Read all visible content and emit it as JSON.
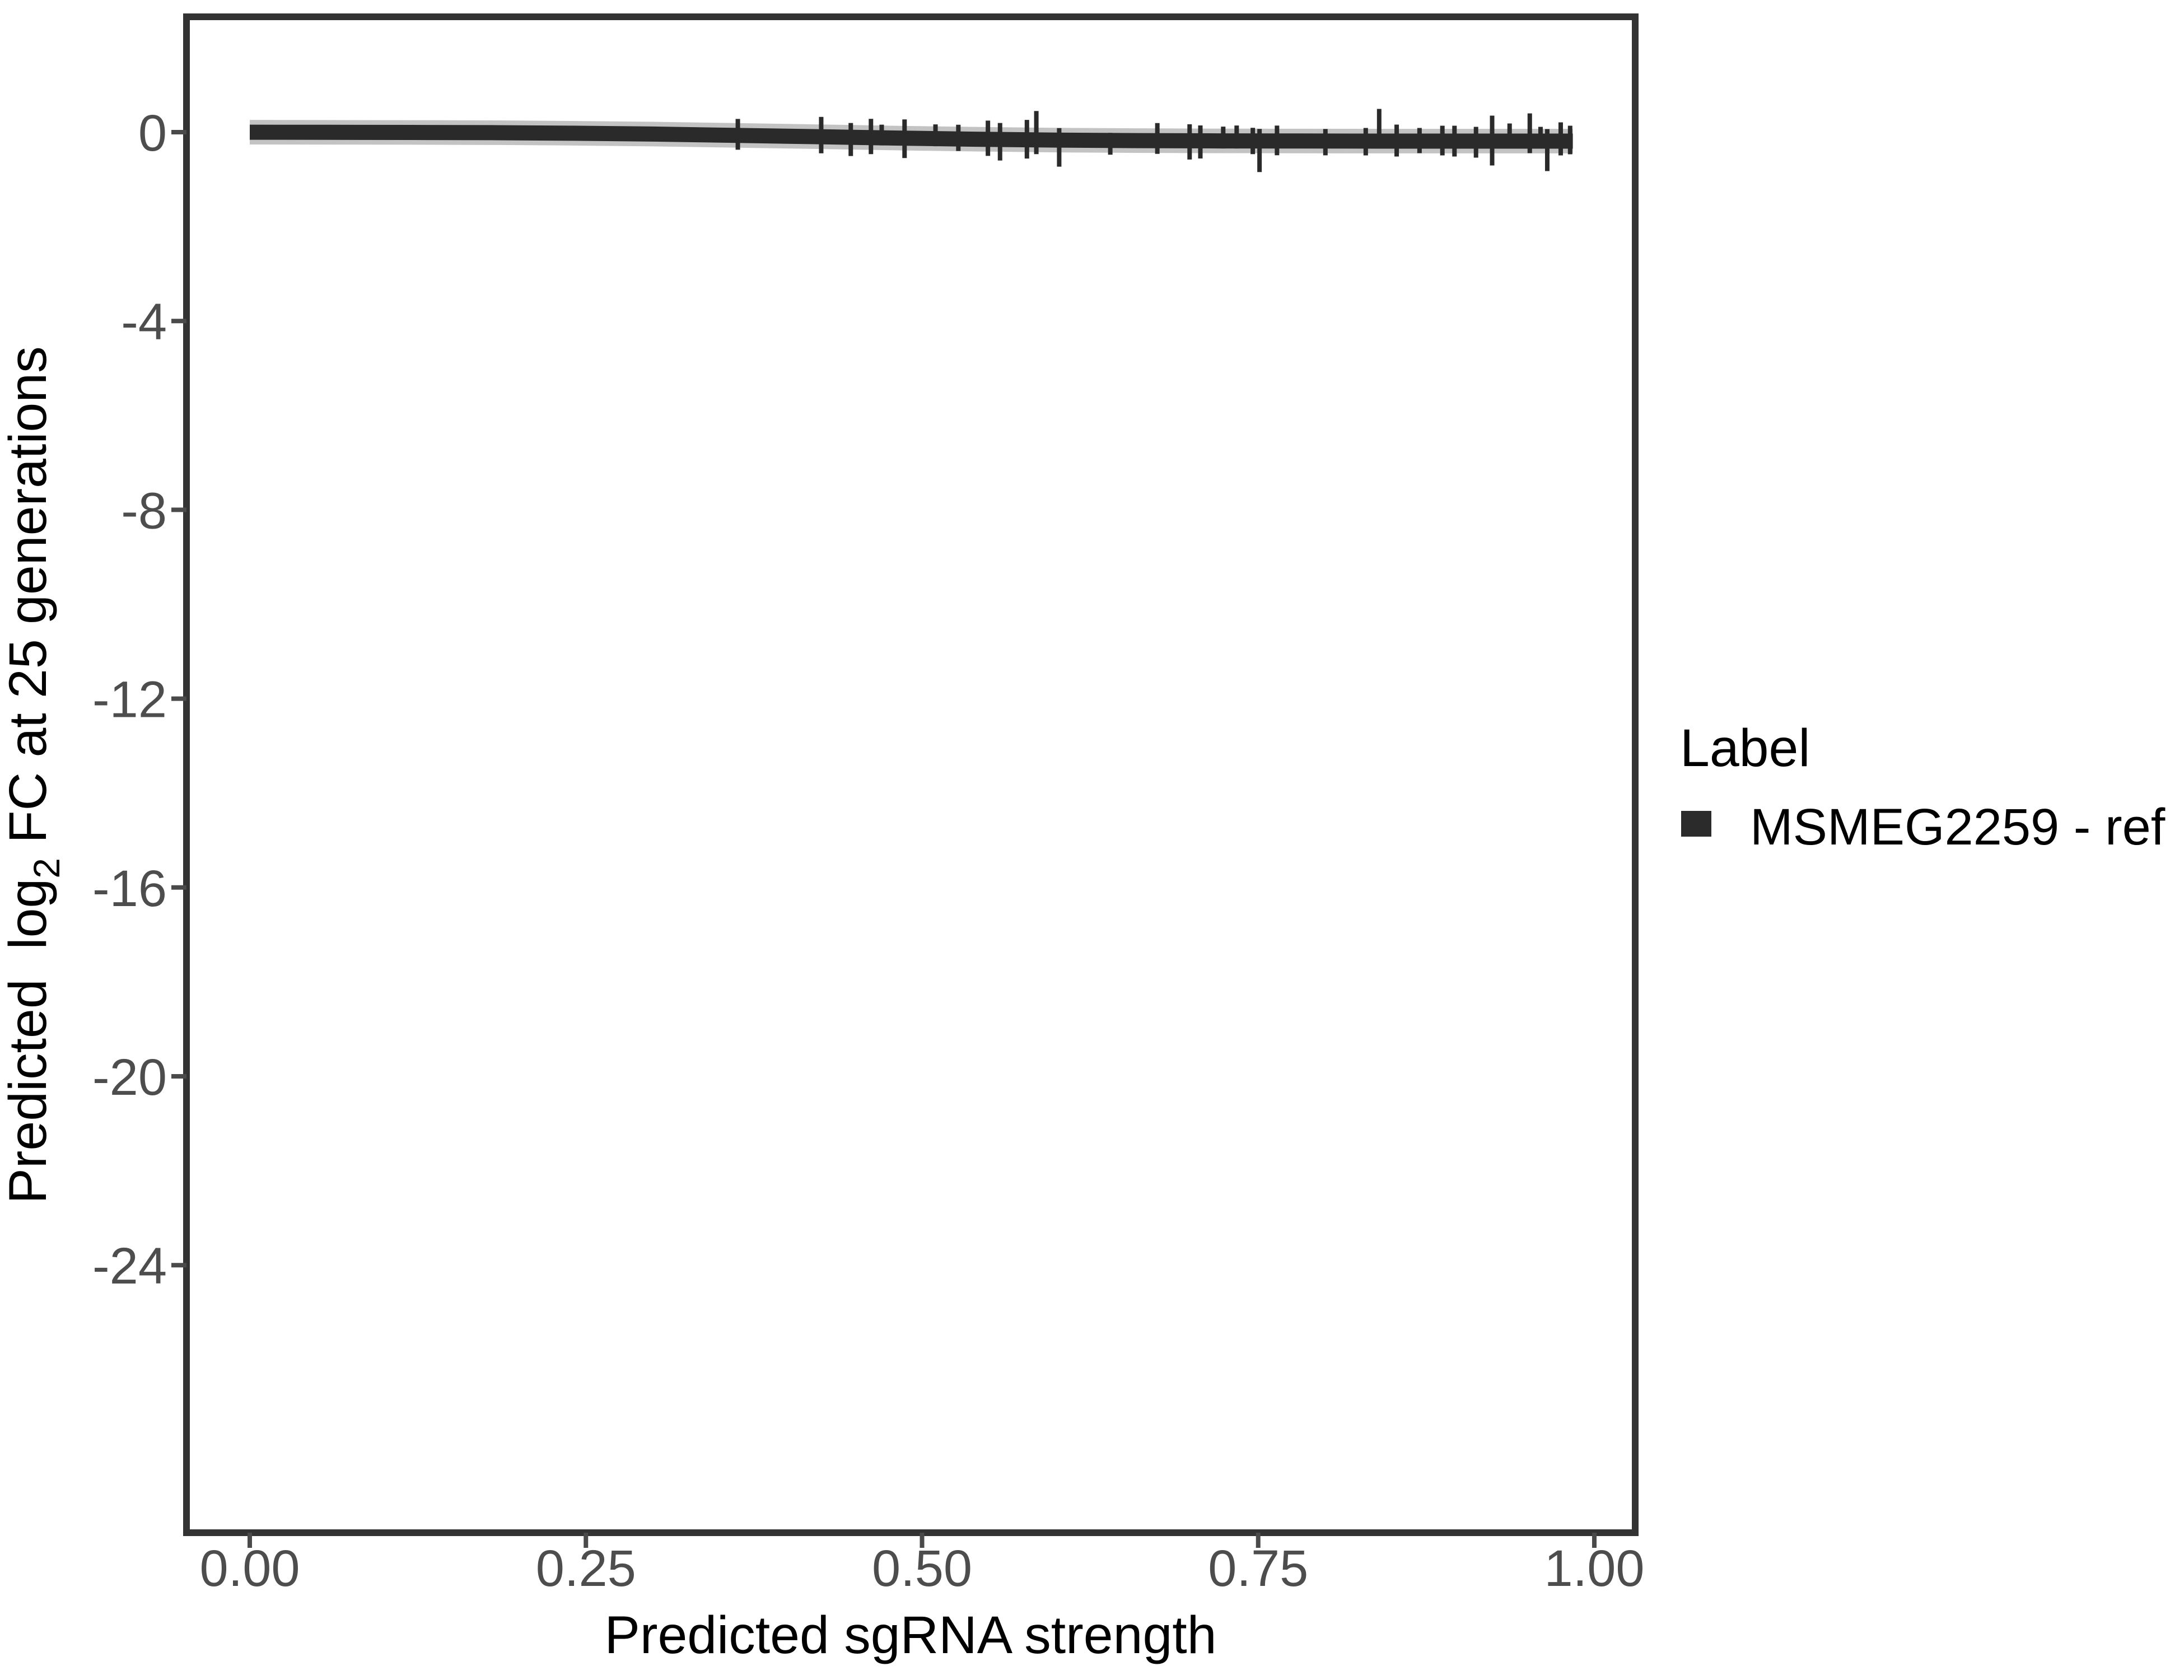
{
  "figure": {
    "background_color": "#ffffff",
    "panel_border_color": "#333333",
    "tick_mark_color": "#4a4a4a",
    "tick_label_color": "#4d4d4d"
  },
  "chart_data": {
    "type": "line",
    "title": "",
    "xlabel": "Predicted sgRNA strength",
    "ylabel": {
      "pre": "Predicted  log",
      "sub": "2",
      "post": " FC at 25 generations"
    },
    "ylabel_flat": "Predicted log2 FC at 25 generations",
    "xlim": [
      -0.047,
      1.03
    ],
    "ylim": [
      -29.7,
      2.44
    ],
    "x_tick_values": [
      0,
      0.25,
      0.5,
      0.75,
      1.0
    ],
    "x_tick_labels": [
      "0.00",
      "0.25",
      "0.50",
      "0.75",
      "1.00"
    ],
    "y_tick_values": [
      0,
      -4,
      -8,
      -12,
      -16,
      -20,
      -24
    ],
    "y_tick_labels": [
      "0",
      "-4",
      "-8",
      "-12",
      "-16",
      "-20",
      "-24"
    ],
    "grid": false,
    "legend": {
      "position": "right",
      "title": "Label",
      "entries": [
        {
          "label": "MSMEG2259 - ref",
          "color": "#2b2b2b"
        }
      ]
    },
    "series": [
      {
        "name": "MSMEG2259 - ref",
        "color": "#2a2a2a",
        "ribbon_color": "#c3c3c3",
        "line_width_data_units": 0.32,
        "ribbon_halfwidth_data_units": 0.26,
        "points": [
          [
            0.0,
            -0.001
          ],
          [
            0.06,
            -0.003
          ],
          [
            0.12,
            -0.006
          ],
          [
            0.18,
            -0.011
          ],
          [
            0.24,
            -0.022
          ],
          [
            0.3,
            -0.04
          ],
          [
            0.36,
            -0.068
          ],
          [
            0.42,
            -0.095
          ],
          [
            0.48,
            -0.125
          ],
          [
            0.54,
            -0.15
          ],
          [
            0.6,
            -0.168
          ],
          [
            0.66,
            -0.179
          ],
          [
            0.72,
            -0.185
          ],
          [
            0.78,
            -0.188
          ],
          [
            0.84,
            -0.19
          ],
          [
            0.9,
            -0.19
          ],
          [
            0.95,
            -0.19
          ],
          [
            0.984,
            -0.19
          ]
        ]
      }
    ],
    "error_ticks": [
      {
        "x": 0.363,
        "up": 16,
        "down": 12
      },
      {
        "x": 0.425,
        "up": 22,
        "down": 16
      },
      {
        "x": 0.447,
        "up": 12,
        "down": 20
      },
      {
        "x": 0.462,
        "up": 20,
        "down": 16
      },
      {
        "x": 0.47,
        "up": 10,
        "down": 0
      },
      {
        "x": 0.487,
        "up": 20,
        "down": 22
      },
      {
        "x": 0.51,
        "up": 12,
        "down": 0
      },
      {
        "x": 0.527,
        "up": 12,
        "down": 8
      },
      {
        "x": 0.549,
        "up": 20,
        "down": 16
      },
      {
        "x": 0.558,
        "up": 16,
        "down": 24
      },
      {
        "x": 0.578,
        "up": 22,
        "down": 20
      },
      {
        "x": 0.585,
        "up": 38,
        "down": 12
      },
      {
        "x": 0.602,
        "up": 8,
        "down": 34
      },
      {
        "x": 0.64,
        "up": 0,
        "down": 12
      },
      {
        "x": 0.675,
        "up": 18,
        "down": 10
      },
      {
        "x": 0.699,
        "up": 16,
        "down": 20
      },
      {
        "x": 0.707,
        "up": 14,
        "down": 18
      },
      {
        "x": 0.724,
        "up": 12,
        "down": 0
      },
      {
        "x": 0.734,
        "up": 14,
        "down": 0
      },
      {
        "x": 0.746,
        "up": 10,
        "down": 10
      },
      {
        "x": 0.751,
        "up": 8,
        "down": 42
      },
      {
        "x": 0.764,
        "up": 14,
        "down": 12
      },
      {
        "x": 0.8,
        "up": 8,
        "down": 12
      },
      {
        "x": 0.83,
        "up": 10,
        "down": 12
      },
      {
        "x": 0.84,
        "up": 44,
        "down": 0
      },
      {
        "x": 0.853,
        "up": 16,
        "down": 14
      },
      {
        "x": 0.87,
        "up": 10,
        "down": 8
      },
      {
        "x": 0.887,
        "up": 14,
        "down": 12
      },
      {
        "x": 0.896,
        "up": 14,
        "down": 14
      },
      {
        "x": 0.912,
        "up": 12,
        "down": 16
      },
      {
        "x": 0.924,
        "up": 32,
        "down": 30
      },
      {
        "x": 0.937,
        "up": 18,
        "down": 0
      },
      {
        "x": 0.952,
        "up": 36,
        "down": 8
      },
      {
        "x": 0.96,
        "up": 12,
        "down": 0
      },
      {
        "x": 0.965,
        "up": 8,
        "down": 40
      },
      {
        "x": 0.975,
        "up": 20,
        "down": 12
      },
      {
        "x": 0.982,
        "up": 14,
        "down": 10
      }
    ]
  }
}
